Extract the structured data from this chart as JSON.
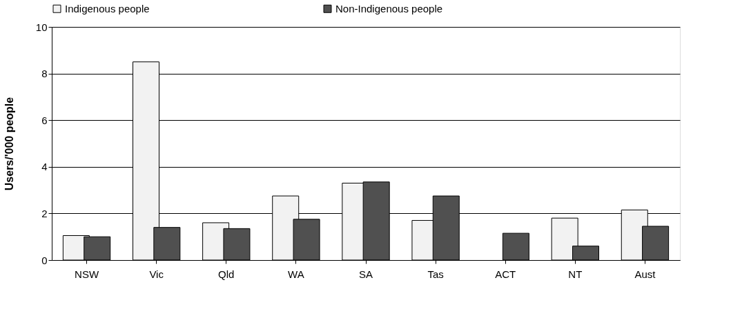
{
  "chart_data": {
    "type": "bar",
    "ylabel": "Users/'000 people",
    "categories": [
      "NSW",
      "Vic",
      "Qld",
      "WA",
      "SA",
      "Tas",
      "ACT",
      "NT",
      "Aust"
    ],
    "series": [
      {
        "name": "Indigenous people",
        "color": "#f2f2f2",
        "values": [
          1.05,
          8.5,
          1.6,
          2.75,
          3.3,
          1.7,
          null,
          1.8,
          2.15
        ]
      },
      {
        "name": "Non-Indigenous people",
        "color": "#505050",
        "values": [
          1.0,
          1.4,
          1.35,
          1.75,
          3.35,
          2.75,
          1.15,
          0.6,
          1.45
        ]
      }
    ],
    "ylim": [
      0,
      10
    ],
    "yticks": [
      0,
      2,
      4,
      6,
      8,
      10
    ],
    "grid": "y",
    "legend": "top"
  }
}
